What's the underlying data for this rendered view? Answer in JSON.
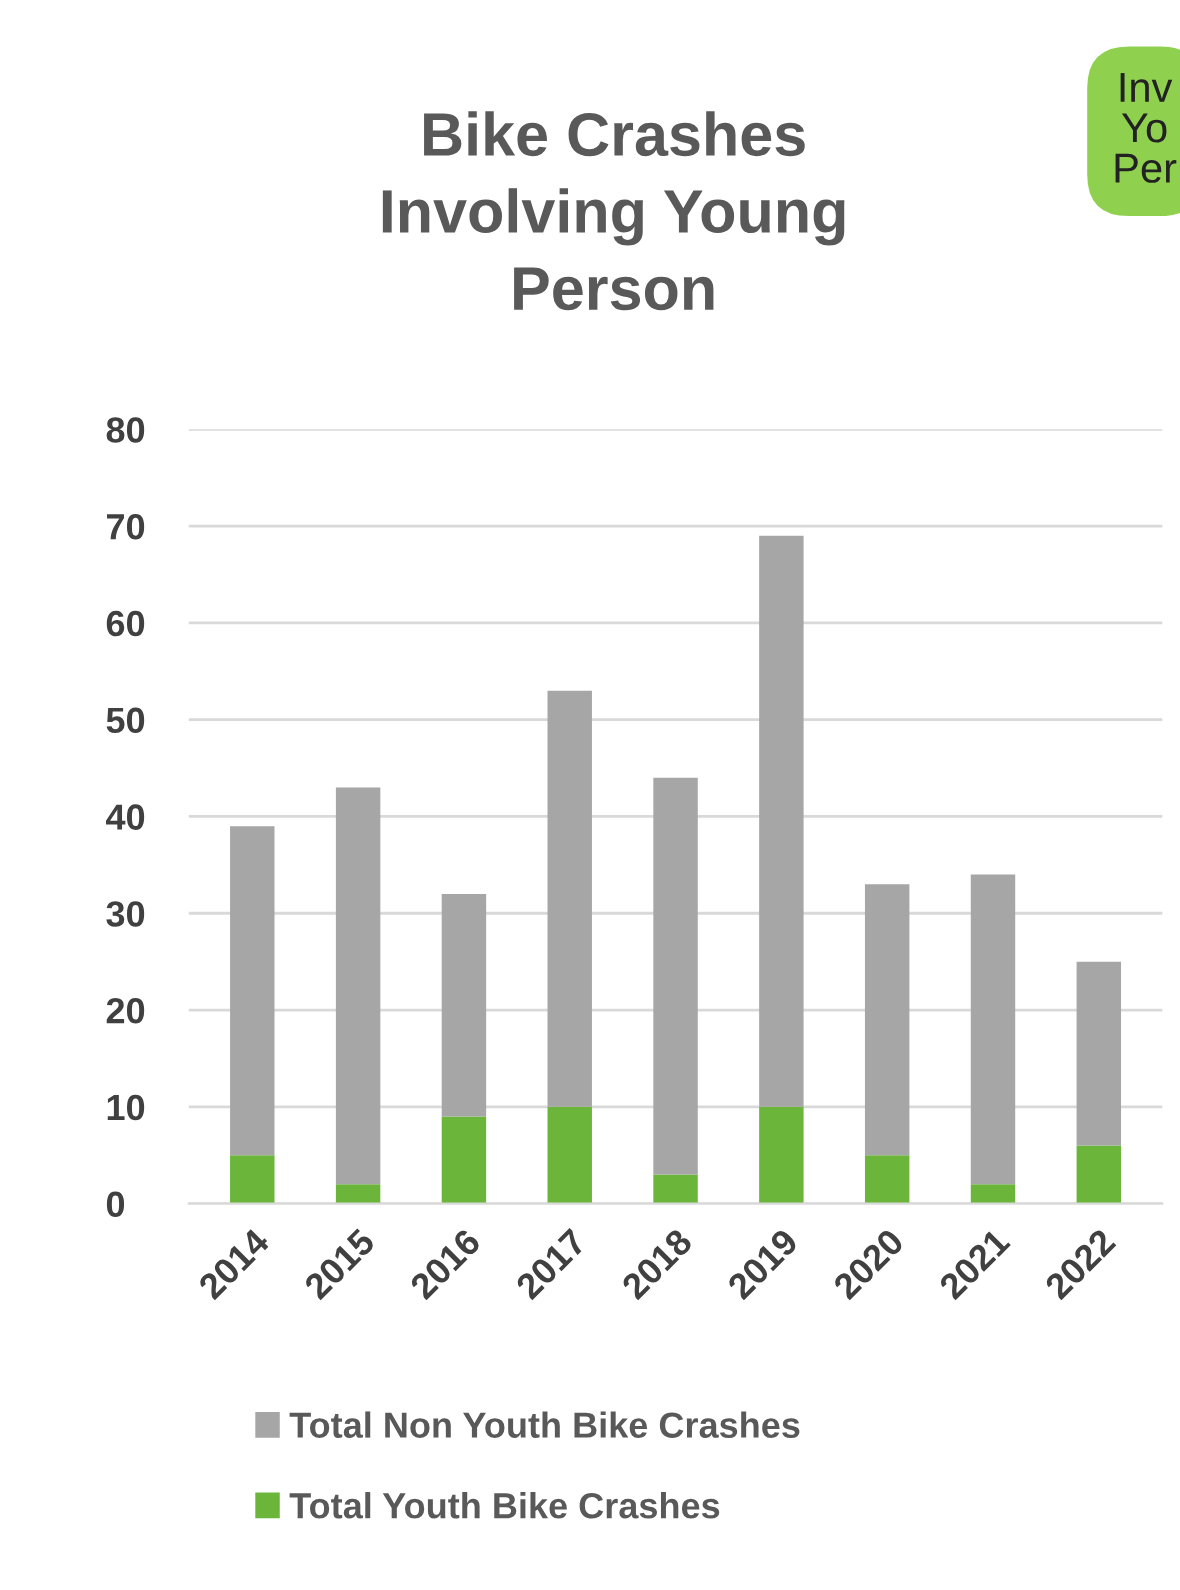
{
  "chart_data": {
    "type": "bar",
    "title": "Bike Crashes\nInvolving Young\nPerson",
    "stacked": true,
    "categories": [
      "2014",
      "2015",
      "2016",
      "2017",
      "2018",
      "2019",
      "2020",
      "2021",
      "2022"
    ],
    "series": [
      {
        "name": "Total Youth Bike Crashes",
        "color": "#6bb53a",
        "values": [
          5,
          2,
          9,
          10,
          3,
          10,
          5,
          2,
          6
        ]
      },
      {
        "name": "Total Non Youth Bike Crashes",
        "color": "#a6a6a6",
        "values": [
          34,
          41,
          23,
          43,
          41,
          59,
          28,
          32,
          19
        ]
      }
    ],
    "ylim": [
      0,
      80
    ],
    "yticks": [
      0,
      10,
      20,
      30,
      40,
      50,
      60,
      70,
      80
    ],
    "grid": "y",
    "legend": "bottom",
    "annotations": [
      "Inv\nYo\nPer"
    ]
  }
}
